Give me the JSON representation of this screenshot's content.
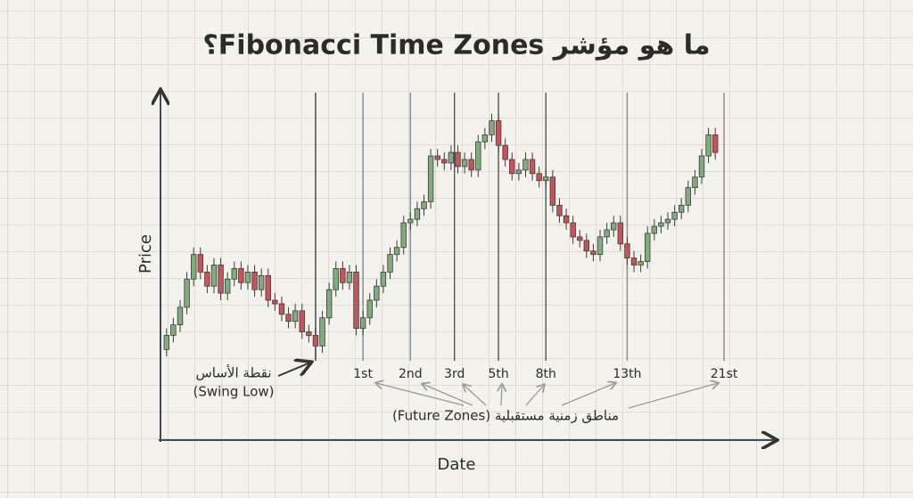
{
  "chart_data": {
    "type": "candlestick",
    "title": "ما هو مؤشر Fibonacci Time Zones؟",
    "y_label": "Price",
    "x_label": "Date",
    "ylim": [
      0,
      100
    ],
    "xlim": [
      -0.5,
      84
    ],
    "up_color": "#7fae7a",
    "down_color": "#c8545a",
    "open": [
      26,
      30,
      33,
      38,
      46,
      53,
      48,
      44,
      50,
      42,
      46,
      49,
      45,
      48,
      43,
      47,
      40,
      39,
      36,
      34,
      37,
      31,
      30,
      27,
      35,
      43,
      49,
      45,
      48,
      32,
      35,
      40,
      44,
      48,
      53,
      55,
      62,
      63,
      66,
      68,
      81,
      80,
      79,
      82,
      78,
      80,
      77,
      85,
      87,
      91,
      84,
      80,
      76,
      77,
      80,
      76,
      74,
      75,
      67,
      64,
      62,
      58,
      57,
      54,
      53,
      58,
      60,
      62,
      56,
      52,
      50,
      51,
      59,
      61,
      62,
      63,
      65,
      67,
      72,
      75,
      81,
      87
    ],
    "high": [
      32,
      35,
      40,
      48,
      55,
      55,
      50,
      52,
      52,
      48,
      51,
      51,
      50,
      50,
      49,
      49,
      42,
      41,
      38,
      39,
      39,
      33,
      32,
      37,
      45,
      51,
      51,
      50,
      50,
      37,
      42,
      46,
      50,
      55,
      57,
      64,
      65,
      68,
      70,
      83,
      83,
      82,
      84,
      84,
      82,
      82,
      87,
      89,
      93,
      93,
      86,
      82,
      79,
      82,
      82,
      78,
      77,
      77,
      69,
      66,
      64,
      60,
      59,
      56,
      60,
      62,
      64,
      64,
      58,
      54,
      53,
      61,
      63,
      64,
      65,
      67,
      69,
      74,
      77,
      83,
      89,
      89
    ],
    "low": [
      24,
      28,
      31,
      36,
      44,
      46,
      42,
      42,
      40,
      40,
      44,
      43,
      43,
      41,
      41,
      38,
      37,
      34,
      32,
      32,
      29,
      28,
      23,
      25,
      33,
      41,
      43,
      43,
      30,
      30,
      33,
      38,
      42,
      46,
      51,
      53,
      60,
      61,
      64,
      66,
      78,
      77,
      77,
      76,
      76,
      75,
      75,
      83,
      85,
      82,
      78,
      74,
      74,
      75,
      74,
      72,
      72,
      65,
      62,
      60,
      56,
      55,
      52,
      51,
      51,
      56,
      58,
      54,
      50,
      48,
      48,
      49,
      57,
      59,
      60,
      61,
      63,
      65,
      70,
      73,
      79,
      80
    ],
    "close": [
      30,
      33,
      38,
      46,
      53,
      48,
      44,
      50,
      42,
      46,
      49,
      45,
      48,
      43,
      47,
      40,
      39,
      36,
      34,
      37,
      31,
      30,
      27,
      35,
      43,
      49,
      45,
      48,
      32,
      35,
      40,
      44,
      48,
      53,
      55,
      62,
      63,
      66,
      68,
      81,
      80,
      79,
      82,
      78,
      80,
      77,
      85,
      87,
      91,
      84,
      80,
      76,
      77,
      80,
      76,
      74,
      75,
      67,
      64,
      62,
      58,
      57,
      54,
      53,
      58,
      60,
      62,
      56,
      52,
      50,
      51,
      59,
      61,
      62,
      63,
      65,
      67,
      72,
      75,
      81,
      87,
      82
    ],
    "base": {
      "at": 22,
      "label": "نقطة الأساس",
      "sublabel": "(Swing Low)",
      "color": "#3a3a3a"
    },
    "zones": [
      {
        "label": "1st",
        "at": 29,
        "color": "#5f7690"
      },
      {
        "label": "2nd",
        "at": 36,
        "color": "#5f7690"
      },
      {
        "label": "3rd",
        "at": 42.5,
        "color": "#3a3a3a"
      },
      {
        "label": "5th",
        "at": 49,
        "color": "#3a3a3a"
      },
      {
        "label": "8th",
        "at": 56,
        "color": "#3a3a3a"
      },
      {
        "label": "13th",
        "at": 68,
        "color": "#8a7262"
      },
      {
        "label": "21st",
        "at": 82.3,
        "color": "#8a7262"
      }
    ],
    "zones_note": "مناطق زمنية مستقبلية (Future Zones)"
  }
}
